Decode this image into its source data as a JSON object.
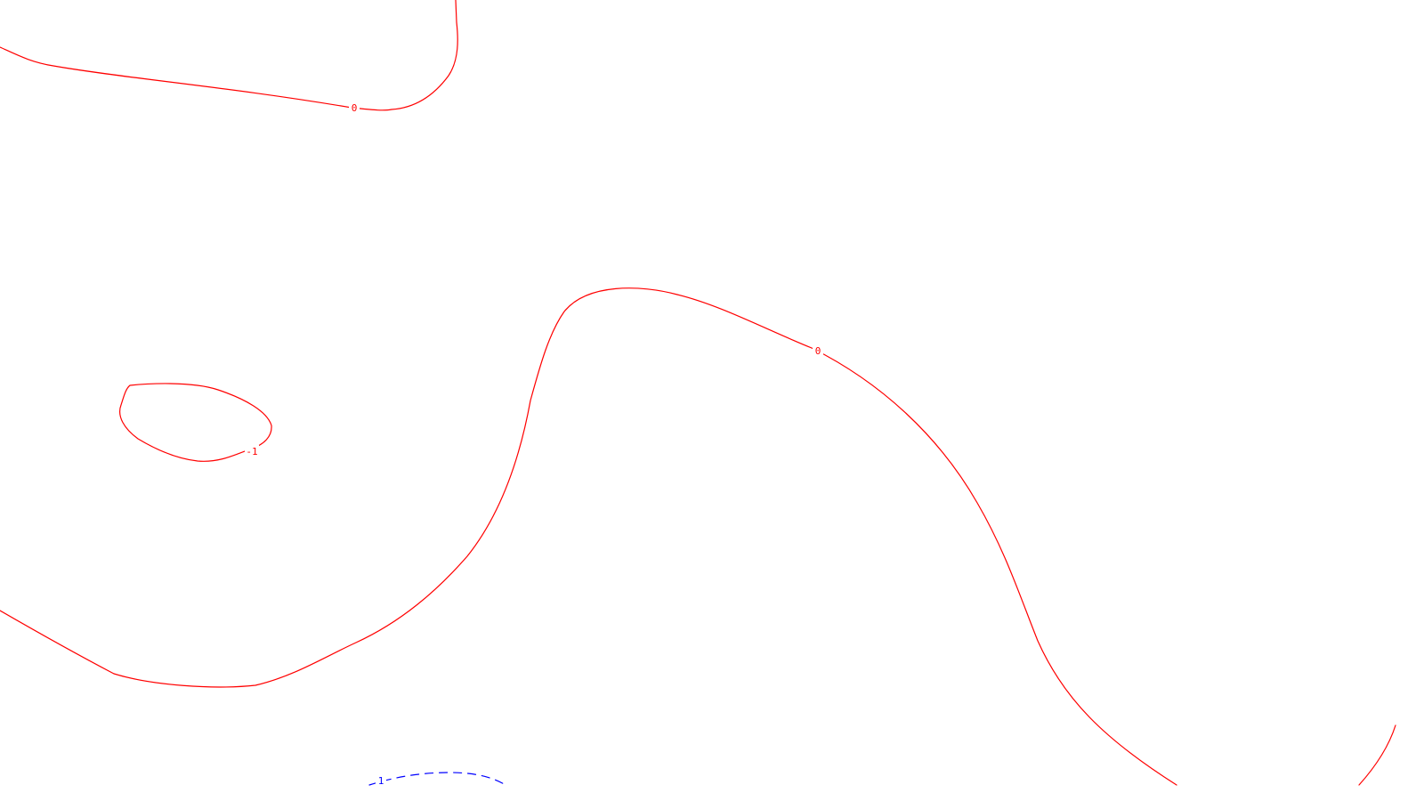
{
  "map": {
    "contours": [
      {
        "id": "zero-top",
        "level": "0",
        "label": "0",
        "color": "#ff0000",
        "dashed": false
      },
      {
        "id": "zero-middle",
        "level": "0",
        "label": "0",
        "color": "#ff0000",
        "dashed": false
      },
      {
        "id": "minus-one-loop",
        "level": "-1",
        "label": "-1",
        "color": "#ff0000",
        "dashed": false
      },
      {
        "id": "zero-bottom-right",
        "level": "0",
        "label": "",
        "color": "#ff0000",
        "dashed": false
      },
      {
        "id": "one-bottom",
        "level": "1",
        "label": "1",
        "color": "#0000ff",
        "dashed": true
      }
    ]
  }
}
